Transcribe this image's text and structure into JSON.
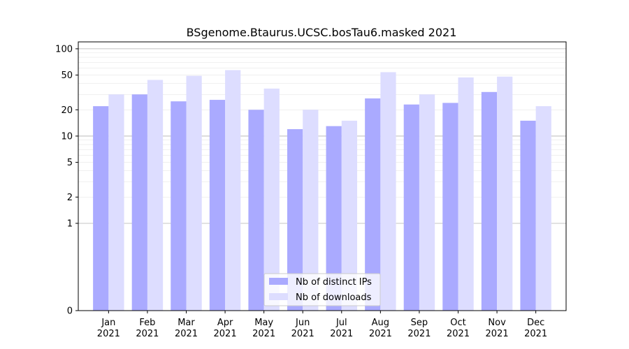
{
  "chart_data": {
    "type": "bar",
    "title": "BSgenome.Btaurus.UCSC.bosTau6.masked 2021",
    "xlabel": "",
    "ylabel": "",
    "yscale": "symlog",
    "ylim": [
      0,
      120
    ],
    "yticks": [
      0,
      1,
      2,
      5,
      10,
      20,
      50,
      100
    ],
    "ytick_labels": [
      "0",
      "1",
      "2",
      "5",
      "10",
      "20",
      "50",
      "100"
    ],
    "categories": [
      "Jan\n2021",
      "Feb\n2021",
      "Mar\n2021",
      "Apr\n2021",
      "May\n2021",
      "Jun\n2021",
      "Jul\n2021",
      "Aug\n2021",
      "Sep\n2021",
      "Oct\n2021",
      "Nov\n2021",
      "Dec\n2021"
    ],
    "series": [
      {
        "name": "Nb of distinct IPs",
        "color": "#aaaaff",
        "values": [
          22,
          30,
          25,
          26,
          20,
          12,
          13,
          27,
          23,
          24,
          32,
          15
        ]
      },
      {
        "name": "Nb of downloads",
        "color": "#ddddff",
        "values": [
          30,
          44,
          49,
          57,
          35,
          20,
          15,
          54,
          30,
          47,
          48,
          22
        ]
      }
    ],
    "legend_position": "lower center",
    "grid": true
  }
}
